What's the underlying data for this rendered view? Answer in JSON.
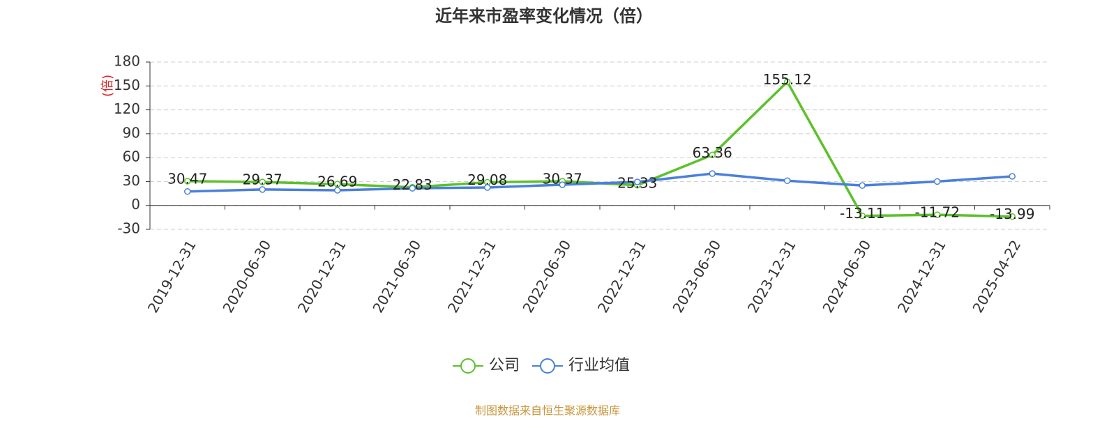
{
  "chart_data": {
    "type": "line",
    "title": "近年来市盈率变化情况（倍）",
    "y_label": "(倍)",
    "source": "制图数据来自恒生聚源数据库",
    "categories": [
      "2019-12-31",
      "2020-06-30",
      "2020-12-31",
      "2021-06-30",
      "2021-12-31",
      "2022-06-30",
      "2022-12-31",
      "2023-06-30",
      "2023-12-31",
      "2024-06-30",
      "2024-12-31",
      "2025-04-22"
    ],
    "series": [
      {
        "name": "公司",
        "color": "#5cc12b",
        "values": [
          30.47,
          29.37,
          26.69,
          22.83,
          29.08,
          30.37,
          25.33,
          63.36,
          155.12,
          -13.11,
          -11.72,
          -13.99
        ],
        "show_labels": true
      },
      {
        "name": "行业均值",
        "color": "#4a80dc",
        "values": [
          17.5,
          20,
          19,
          21.5,
          22.5,
          26,
          29.5,
          40,
          31,
          25,
          30,
          36.5
        ],
        "show_labels": false
      }
    ],
    "ylim": [
      -30,
      180
    ],
    "yticks": [
      -30,
      0,
      30,
      60,
      90,
      120,
      150,
      180
    ],
    "grid": true,
    "legend": "bottom"
  }
}
